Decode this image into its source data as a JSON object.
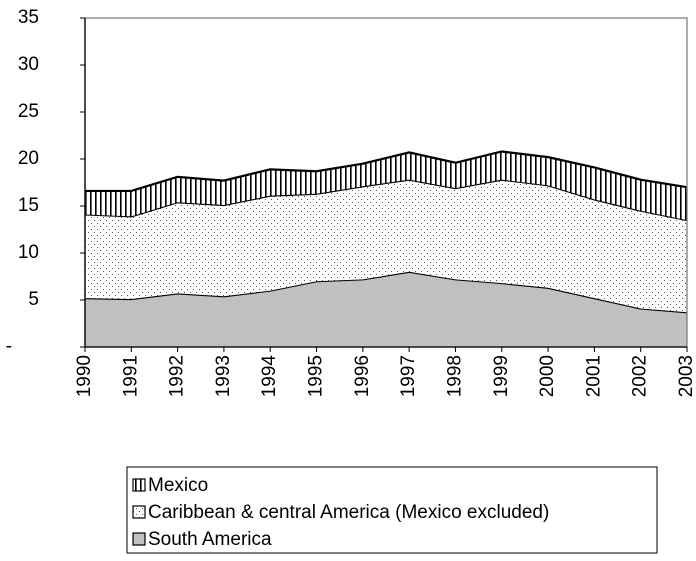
{
  "chart_data": {
    "type": "stacked-area",
    "categories": [
      "1990",
      "1991",
      "1992",
      "1993",
      "1994",
      "1995",
      "1996",
      "1997",
      "1998",
      "1999",
      "2000",
      "2001",
      "2002",
      "2003"
    ],
    "series": [
      {
        "name": "South America",
        "color": "#c0c0c0",
        "pattern": "solid",
        "values": [
          5.2,
          5.1,
          5.7,
          5.4,
          6.0,
          7.0,
          7.2,
          8.0,
          7.2,
          6.8,
          6.3,
          5.2,
          4.1,
          3.7
        ]
      },
      {
        "name": "Caribbean & central America (Mexico excluded)",
        "color": "#ffffff",
        "pattern": "dots",
        "values": [
          8.9,
          8.8,
          9.7,
          9.7,
          10.1,
          9.3,
          9.9,
          9.8,
          9.7,
          11.0,
          10.9,
          10.5,
          10.4,
          9.8
        ]
      },
      {
        "name": "Mexico",
        "color": "#ffffff",
        "pattern": "vertical-lines",
        "values": [
          2.5,
          2.7,
          2.7,
          2.6,
          2.8,
          2.4,
          2.4,
          2.9,
          2.7,
          3.0,
          3.0,
          3.4,
          3.3,
          3.5
        ]
      }
    ],
    "ylim": [
      0,
      35
    ],
    "yticks": [
      {
        "value": 0,
        "label": "-"
      },
      5,
      10,
      15,
      20,
      25,
      30,
      35
    ],
    "grid": false,
    "legend": "bottom"
  }
}
